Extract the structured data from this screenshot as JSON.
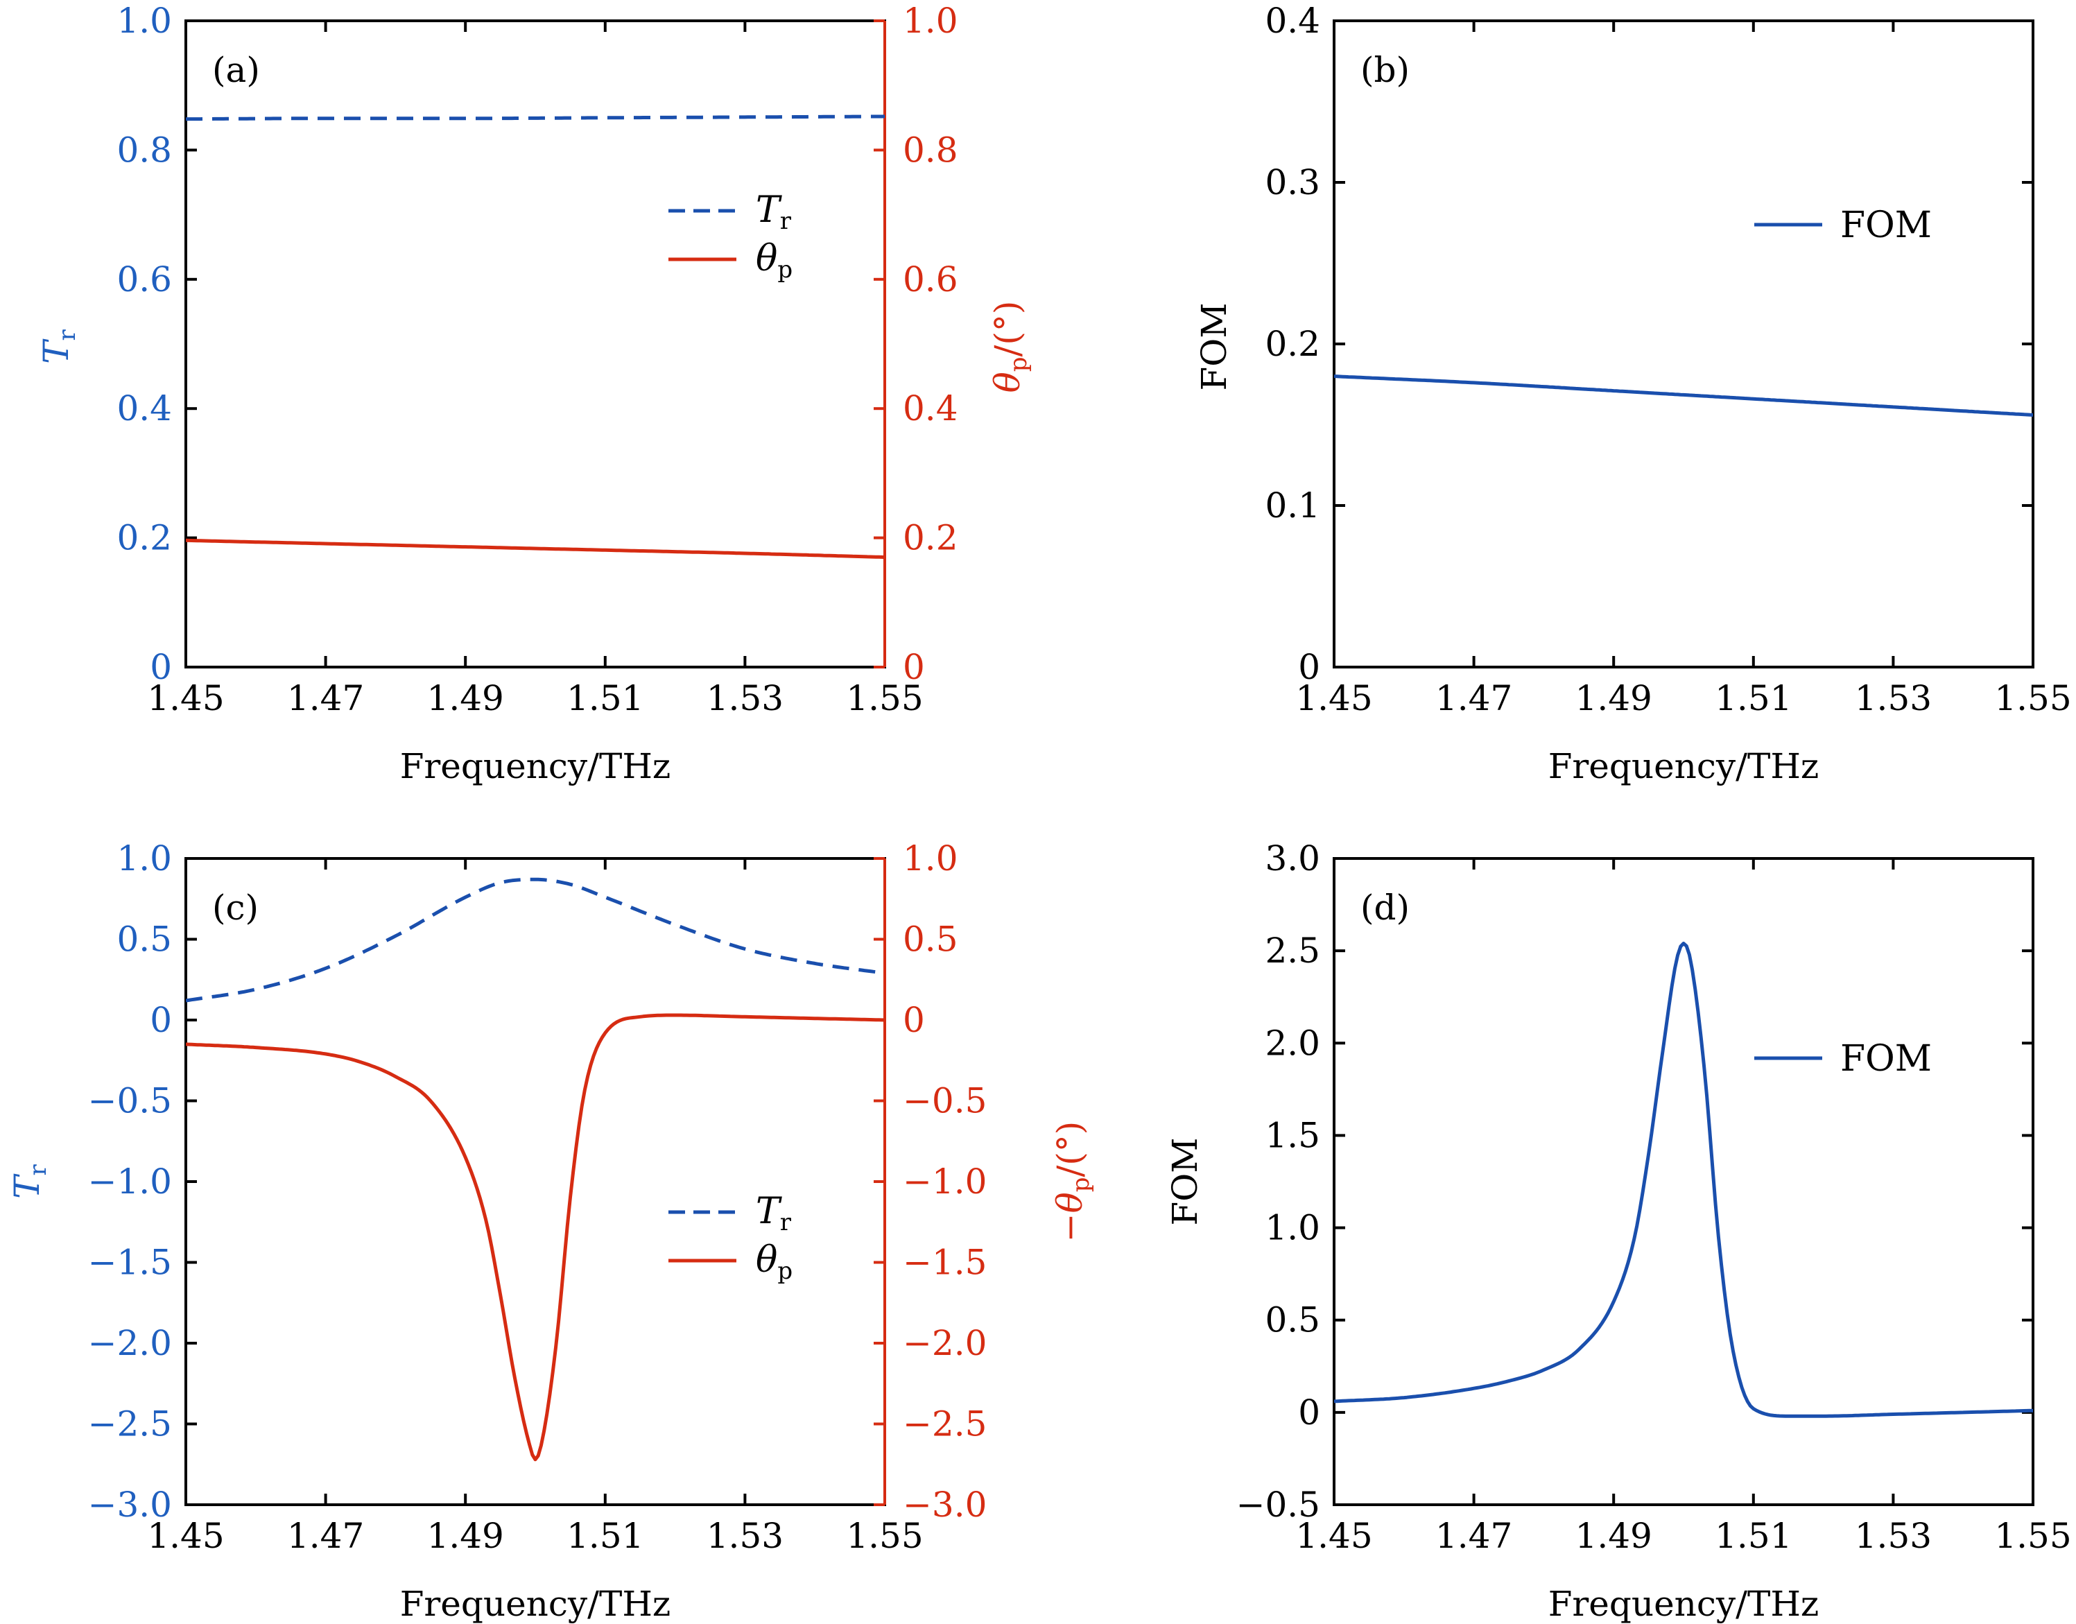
{
  "colors": {
    "blue": "#1a4fad",
    "blue_tick": "#1f5fbf",
    "red": "#d62c12",
    "black": "#000000"
  },
  "x_axis": {
    "ticks": [
      1.45,
      1.47,
      1.49,
      1.51,
      1.53,
      1.55
    ],
    "tick_labels": [
      "1.45",
      "1.47",
      "1.49",
      "1.51",
      "1.53",
      "1.55"
    ],
    "label": "Frequency/THz"
  },
  "legend": {
    "tr_main": "T",
    "tr_sub": "r",
    "theta_main": "θ",
    "theta_sub": "p",
    "fom": "FOM"
  },
  "panels": {
    "a": {
      "tag": "(a)",
      "left_ticks": [
        "1.0",
        "0.8",
        "0.6",
        "0.4",
        "0.2",
        "0"
      ],
      "right_ticks": [
        "1.0",
        "0.8",
        "0.6",
        "0.4",
        "0.2",
        "0"
      ],
      "left_label_main": "T",
      "left_label_sub": "r",
      "right_label_main": "θ",
      "right_label_sub": "p",
      "right_label_tail": "/(°)"
    },
    "b": {
      "tag": "(b)",
      "left_ticks": [
        "0.4",
        "0.3",
        "0.2",
        "0.1",
        "0"
      ],
      "left_label": "FOM"
    },
    "c": {
      "tag": "(c)",
      "left_ticks": [
        "1.0",
        "0.5",
        "0",
        "−0.5",
        "−1.0",
        "−1.5",
        "−2.0",
        "−2.5",
        "−3.0"
      ],
      "right_ticks": [
        "1.0",
        "0.5",
        "0",
        "−0.5",
        "−1.0",
        "−1.5",
        "−2.0",
        "−2.5",
        "−3.0"
      ],
      "left_label_main": "T",
      "left_label_sub": "r",
      "right_label_pre": "−",
      "right_label_main": "θ",
      "right_label_sub": "p",
      "right_label_tail": "/(°)"
    },
    "d": {
      "tag": "(d)",
      "left_ticks": [
        "3.0",
        "2.5",
        "2.0",
        "1.5",
        "1.0",
        "0.5",
        "0",
        "−0.5"
      ],
      "left_label": "FOM"
    }
  },
  "chart_data": [
    {
      "panel": "a",
      "type": "line",
      "xlim": [
        1.45,
        1.55
      ],
      "ylim_left": [
        0,
        1.0
      ],
      "ylim_right": [
        0,
        1.0
      ],
      "xlabel": "Frequency/THz",
      "series": [
        {
          "name": "Tr",
          "axis": "left",
          "style": "dashed",
          "color": "#1a4fad",
          "x": [
            1.45,
            1.47,
            1.49,
            1.51,
            1.53,
            1.55
          ],
          "y": [
            0.848,
            0.849,
            0.849,
            0.85,
            0.851,
            0.852
          ]
        },
        {
          "name": "θp",
          "axis": "right",
          "style": "solid",
          "color": "#d62c12",
          "x": [
            1.45,
            1.47,
            1.49,
            1.51,
            1.53,
            1.55
          ],
          "y": [
            0.196,
            0.191,
            0.186,
            0.181,
            0.176,
            0.17
          ]
        }
      ],
      "legend_position": "center-right"
    },
    {
      "panel": "b",
      "type": "line",
      "xlim": [
        1.45,
        1.55
      ],
      "ylim": [
        0,
        0.4
      ],
      "xlabel": "Frequency/THz",
      "ylabel": "FOM",
      "series": [
        {
          "name": "FOM",
          "style": "solid",
          "color": "#1a4fad",
          "x": [
            1.45,
            1.47,
            1.49,
            1.51,
            1.53,
            1.55
          ],
          "y": [
            0.18,
            0.176,
            0.171,
            0.166,
            0.161,
            0.156
          ]
        }
      ],
      "legend_position": "upper-right"
    },
    {
      "panel": "c",
      "type": "line",
      "xlim": [
        1.45,
        1.55
      ],
      "ylim_left": [
        -3.0,
        1.0
      ],
      "ylim_right": [
        -3.0,
        1.0
      ],
      "xlabel": "Frequency/THz",
      "series": [
        {
          "name": "Tr",
          "axis": "left",
          "style": "dashed",
          "color": "#1a4fad",
          "x": [
            1.45,
            1.46,
            1.47,
            1.48,
            1.49,
            1.495,
            1.5,
            1.505,
            1.51,
            1.52,
            1.53,
            1.54,
            1.55
          ],
          "y": [
            0.12,
            0.19,
            0.32,
            0.52,
            0.76,
            0.85,
            0.87,
            0.84,
            0.76,
            0.59,
            0.44,
            0.35,
            0.29
          ]
        },
        {
          "name": "θp",
          "axis": "right",
          "style": "solid",
          "color": "#d62c12",
          "x": [
            1.45,
            1.46,
            1.47,
            1.475,
            1.48,
            1.485,
            1.49,
            1.493,
            1.495,
            1.497,
            1.499,
            1.5,
            1.501,
            1.503,
            1.505,
            1.507,
            1.51,
            1.515,
            1.52,
            1.53,
            1.54,
            1.55
          ],
          "y": [
            -0.15,
            -0.17,
            -0.21,
            -0.26,
            -0.35,
            -0.5,
            -0.85,
            -1.25,
            -1.7,
            -2.2,
            -2.6,
            -2.72,
            -2.6,
            -2.0,
            -1.1,
            -0.45,
            -0.08,
            0.02,
            0.03,
            0.02,
            0.01,
            0.0
          ]
        }
      ],
      "legend_position": "lower-right"
    },
    {
      "panel": "d",
      "type": "line",
      "xlim": [
        1.45,
        1.55
      ],
      "ylim": [
        -0.5,
        3.0
      ],
      "xlabel": "Frequency/THz",
      "ylabel": "FOM",
      "series": [
        {
          "name": "FOM",
          "style": "solid",
          "color": "#1a4fad",
          "x": [
            1.45,
            1.46,
            1.47,
            1.475,
            1.48,
            1.485,
            1.49,
            1.493,
            1.495,
            1.497,
            1.499,
            1.5,
            1.501,
            1.503,
            1.505,
            1.507,
            1.51,
            1.515,
            1.52,
            1.53,
            1.54,
            1.55
          ],
          "y": [
            0.06,
            0.08,
            0.13,
            0.17,
            0.23,
            0.34,
            0.6,
            0.95,
            1.4,
            1.95,
            2.45,
            2.54,
            2.45,
            1.85,
            0.95,
            0.35,
            0.02,
            -0.02,
            -0.02,
            -0.01,
            0.0,
            0.01
          ]
        }
      ],
      "legend_position": "center-right"
    }
  ]
}
